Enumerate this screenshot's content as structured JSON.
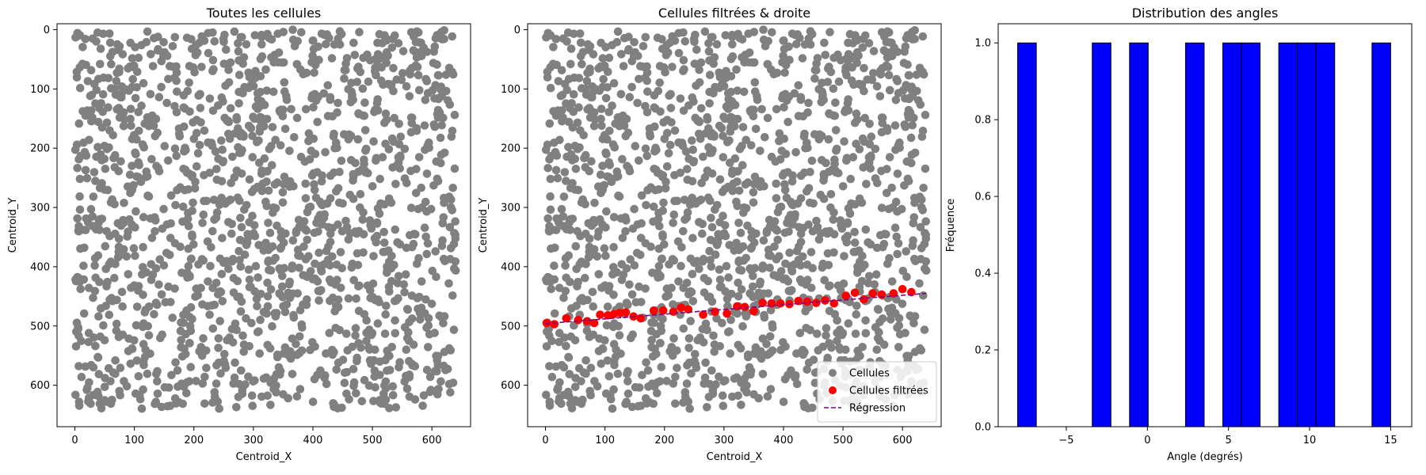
{
  "chart_data": [
    {
      "type": "scatter",
      "title": "Toutes les cellules",
      "xlabel": "Centroid_X",
      "ylabel": "Centroid_Y",
      "xlim": [
        -30,
        665
      ],
      "ylim": [
        670,
        -10
      ],
      "y_inverted": true,
      "xticks": [
        0,
        100,
        200,
        300,
        400,
        500,
        600
      ],
      "yticks": [
        0,
        100,
        200,
        300,
        400,
        500,
        600
      ],
      "grid": false,
      "series": [
        {
          "color": "#808080",
          "count": 1600,
          "x_range": [
            0,
            640
          ],
          "y_range": [
            0,
            640
          ],
          "distribution": "uniform"
        }
      ]
    },
    {
      "type": "scatter",
      "title": "Cellules filtrées & droite",
      "xlabel": "Centroid_X",
      "ylabel": "Centroid_Y",
      "xlim": [
        -30,
        665
      ],
      "ylim": [
        670,
        -10
      ],
      "y_inverted": true,
      "xticks": [
        0,
        100,
        200,
        300,
        400,
        500,
        600
      ],
      "yticks": [
        0,
        100,
        200,
        300,
        400,
        500,
        600
      ],
      "grid": false,
      "legend_position": "bottom-right",
      "series": [
        {
          "name": "Cellules",
          "color": "#808080",
          "count": 1600,
          "x_range": [
            0,
            640
          ],
          "y_range": [
            0,
            640
          ],
          "distribution": "uniform"
        },
        {
          "name": "Cellules filtrées",
          "color": "#ff0000",
          "x": [
            2,
            15,
            35,
            55,
            70,
            82,
            92,
            105,
            115,
            125,
            135,
            148,
            160,
            182,
            198,
            215,
            228,
            240,
            265,
            285,
            305,
            322,
            335,
            350,
            365,
            380,
            395,
            410,
            425,
            440,
            455,
            470,
            485,
            505,
            520,
            535,
            550,
            565,
            585,
            600,
            615
          ],
          "y": [
            495,
            497,
            487,
            490,
            492,
            495,
            481,
            482,
            480,
            478,
            477,
            484,
            487,
            474,
            474,
            476,
            469,
            472,
            481,
            476,
            479,
            467,
            468,
            475,
            461,
            462,
            462,
            463,
            458,
            459,
            461,
            457,
            462,
            449,
            444,
            455,
            445,
            447,
            445,
            438,
            443
          ]
        },
        {
          "name": "Régression",
          "color": "#800080",
          "style": "dashed",
          "x": [
            0,
            640
          ],
          "y": [
            496,
            445
          ]
        }
      ]
    },
    {
      "type": "bar",
      "title": "Distribution des angles",
      "xlabel": "Angle (degrés)",
      "ylabel": "Fréquence",
      "xlim": [
        -9.2,
        16.3
      ],
      "ylim": [
        0,
        1.05
      ],
      "xticks": [
        -5,
        0,
        5,
        10,
        15
      ],
      "yticks": [
        0.0,
        0.2,
        0.4,
        0.6,
        0.8,
        1.0
      ],
      "grid": false,
      "color": "#0000ff",
      "edgecolor": "#000000",
      "bins": [
        {
          "x0": -8.0,
          "x1": -6.85,
          "value": 1
        },
        {
          "x0": -3.4,
          "x1": -2.25,
          "value": 1
        },
        {
          "x0": -1.1,
          "x1": 0.05,
          "value": 1
        },
        {
          "x0": 2.35,
          "x1": 3.5,
          "value": 1
        },
        {
          "x0": 4.65,
          "x1": 5.8,
          "value": 1
        },
        {
          "x0": 5.8,
          "x1": 6.95,
          "value": 1
        },
        {
          "x0": 8.1,
          "x1": 9.25,
          "value": 1
        },
        {
          "x0": 9.25,
          "x1": 10.4,
          "value": 1
        },
        {
          "x0": 10.4,
          "x1": 11.55,
          "value": 1
        },
        {
          "x0": 13.85,
          "x1": 15.0,
          "value": 1
        }
      ]
    }
  ]
}
